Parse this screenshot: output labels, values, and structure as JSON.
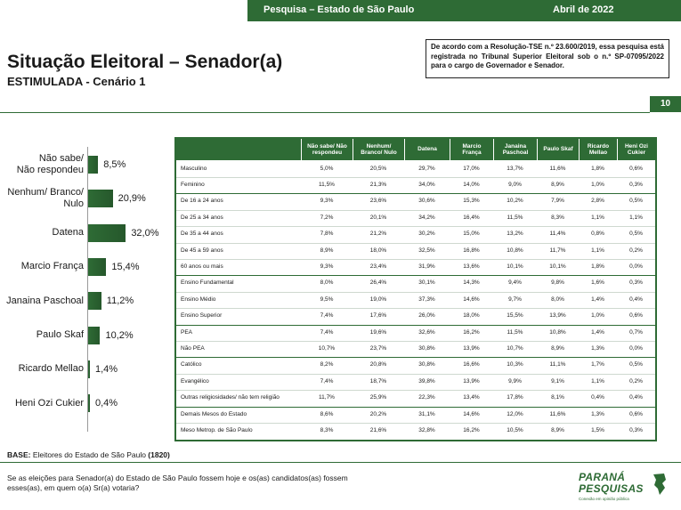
{
  "header": {
    "left": "Pesquisa – Estado de São Paulo",
    "right": "Abril de 2022"
  },
  "title": "Situação Eleitoral – Senador(a)",
  "subtitle": "ESTIMULADA - Cenário 1",
  "notice": {
    "pre": "De acordo com a Resolução-TSE n.º 23.600/2019, essa pesquisa está registrada no Tribunal Superior Eleitoral sob o ",
    "code": "n.º SP-07095/2022",
    "post": " para o cargo de Governador e Senador."
  },
  "page_number": "10",
  "chart_data": {
    "type": "bar",
    "orientation": "horizontal",
    "categories": [
      "Não sabe/ Não respondeu",
      "Nenhum/ Branco/ Nulo",
      "Datena",
      "Marcio França",
      "Janaina Paschoal",
      "Paulo Skaf",
      "Ricardo Mellao",
      "Heni Ozi Cukier"
    ],
    "category_lines": [
      [
        "Não sabe/",
        "Não respondeu"
      ],
      [
        "Nenhum/ Branco/",
        "Nulo"
      ],
      [
        "Datena"
      ],
      [
        "Marcio França"
      ],
      [
        "Janaina Paschoal"
      ],
      [
        "Paulo Skaf"
      ],
      [
        "Ricardo Mellao"
      ],
      [
        "Heni Ozi Cukier"
      ]
    ],
    "values": [
      8.5,
      20.9,
      32.0,
      15.4,
      11.2,
      10.2,
      1.4,
      0.4
    ],
    "value_labels": [
      "8,5%",
      "20,9%",
      "32,0%",
      "15,4%",
      "11,2%",
      "10,2%",
      "1,4%",
      "0,4%"
    ],
    "title": "",
    "xlabel": "",
    "ylabel": "",
    "xlim": [
      0,
      35
    ],
    "color": "#2e6b35"
  },
  "table": {
    "columns": [
      "Não sabe/ Não respondeu",
      "Nenhum/ Branco/ Nulo",
      "Datena",
      "Marcio França",
      "Janaina Paschoal",
      "Paulo Skaf",
      "Ricardo Mellao",
      "Heni Ozi Cukier"
    ],
    "column_lines": [
      [
        "Não sabe/ Não",
        "respondeu"
      ],
      [
        "Nenhum/",
        "Branco/ Nulo"
      ],
      [
        "Datena"
      ],
      [
        "Marcio",
        "França"
      ],
      [
        "Janaina",
        "Paschoal"
      ],
      [
        "Paulo Skaf"
      ],
      [
        "Ricardo",
        "Mellao"
      ],
      [
        "Heni Ozi",
        "Cukier"
      ]
    ],
    "groups": [
      {
        "rows": [
          {
            "label": "Masculino",
            "values": [
              "5,0%",
              "20,5%",
              "29,7%",
              "17,0%",
              "13,7%",
              "11,6%",
              "1,8%",
              "0,6%"
            ]
          },
          {
            "label": "Feminino",
            "values": [
              "11,5%",
              "21,3%",
              "34,0%",
              "14,0%",
              "9,0%",
              "8,9%",
              "1,0%",
              "0,3%"
            ]
          }
        ]
      },
      {
        "rows": [
          {
            "label": "De 16 a 24 anos",
            "values": [
              "9,3%",
              "23,6%",
              "30,6%",
              "15,3%",
              "10,2%",
              "7,9%",
              "2,8%",
              "0,5%"
            ]
          },
          {
            "label": "De 25 a 34 anos",
            "values": [
              "7,2%",
              "20,1%",
              "34,2%",
              "16,4%",
              "11,5%",
              "8,3%",
              "1,1%",
              "1,1%"
            ]
          },
          {
            "label": "De 35 a 44 anos",
            "values": [
              "7,8%",
              "21,2%",
              "30,2%",
              "15,0%",
              "13,2%",
              "11,4%",
              "0,8%",
              "0,5%"
            ]
          },
          {
            "label": "De 45 a 59 anos",
            "values": [
              "8,9%",
              "18,0%",
              "32,5%",
              "16,8%",
              "10,8%",
              "11,7%",
              "1,1%",
              "0,2%"
            ]
          },
          {
            "label": "60 anos ou mais",
            "values": [
              "9,3%",
              "23,4%",
              "31,9%",
              "13,6%",
              "10,1%",
              "10,1%",
              "1,8%",
              "0,0%"
            ]
          }
        ]
      },
      {
        "rows": [
          {
            "label": "Ensino Fundamental",
            "values": [
              "8,0%",
              "26,4%",
              "30,1%",
              "14,3%",
              "9,4%",
              "9,8%",
              "1,6%",
              "0,3%"
            ]
          },
          {
            "label": "Ensino Médio",
            "values": [
              "9,5%",
              "19,0%",
              "37,3%",
              "14,6%",
              "9,7%",
              "8,0%",
              "1,4%",
              "0,4%"
            ]
          },
          {
            "label": "Ensino Superior",
            "values": [
              "7,4%",
              "17,6%",
              "26,0%",
              "18,0%",
              "15,5%",
              "13,9%",
              "1,0%",
              "0,6%"
            ]
          }
        ]
      },
      {
        "rows": [
          {
            "label": "PEA",
            "values": [
              "7,4%",
              "19,6%",
              "32,6%",
              "16,2%",
              "11,5%",
              "10,8%",
              "1,4%",
              "0,7%"
            ]
          },
          {
            "label": "Não PEA",
            "values": [
              "10,7%",
              "23,7%",
              "30,8%",
              "13,9%",
              "10,7%",
              "8,9%",
              "1,3%",
              "0,0%"
            ]
          }
        ]
      },
      {
        "rows": [
          {
            "label": "Católico",
            "values": [
              "8,2%",
              "20,8%",
              "30,8%",
              "16,6%",
              "10,3%",
              "11,1%",
              "1,7%",
              "0,5%"
            ]
          },
          {
            "label": "Evangélico",
            "values": [
              "7,4%",
              "18,7%",
              "39,8%",
              "13,9%",
              "9,9%",
              "9,1%",
              "1,1%",
              "0,2%"
            ]
          },
          {
            "label": "Outras religiosidades/ não tem religião",
            "values": [
              "11,7%",
              "25,9%",
              "22,3%",
              "13,4%",
              "17,8%",
              "8,1%",
              "0,4%",
              "0,4%"
            ]
          }
        ]
      },
      {
        "rows": [
          {
            "label": "Demais Mesos do Estado",
            "values": [
              "8,6%",
              "20,2%",
              "31,1%",
              "14,6%",
              "12,0%",
              "11,6%",
              "1,3%",
              "0,6%"
            ]
          },
          {
            "label": "Meso Metrop. de São Paulo",
            "values": [
              "8,3%",
              "21,6%",
              "32,8%",
              "16,2%",
              "10,5%",
              "8,9%",
              "1,5%",
              "0,3%"
            ]
          }
        ]
      }
    ]
  },
  "base": {
    "label": "BASE:",
    "text": " Eleitores do Estado de São Paulo ",
    "n": "(1820)"
  },
  "question": "Se as eleições para Senador(a) do Estado de São Paulo fossem hoje e os(as) candidatos(as) fossem esses(as), em quem o(a) Sr(a) votaria?",
  "logo": {
    "line1": "PARANÁ",
    "line2": "PESQUISAS",
    "tagline": "Conexão em opinião pública",
    "color": "#2e6b35"
  }
}
